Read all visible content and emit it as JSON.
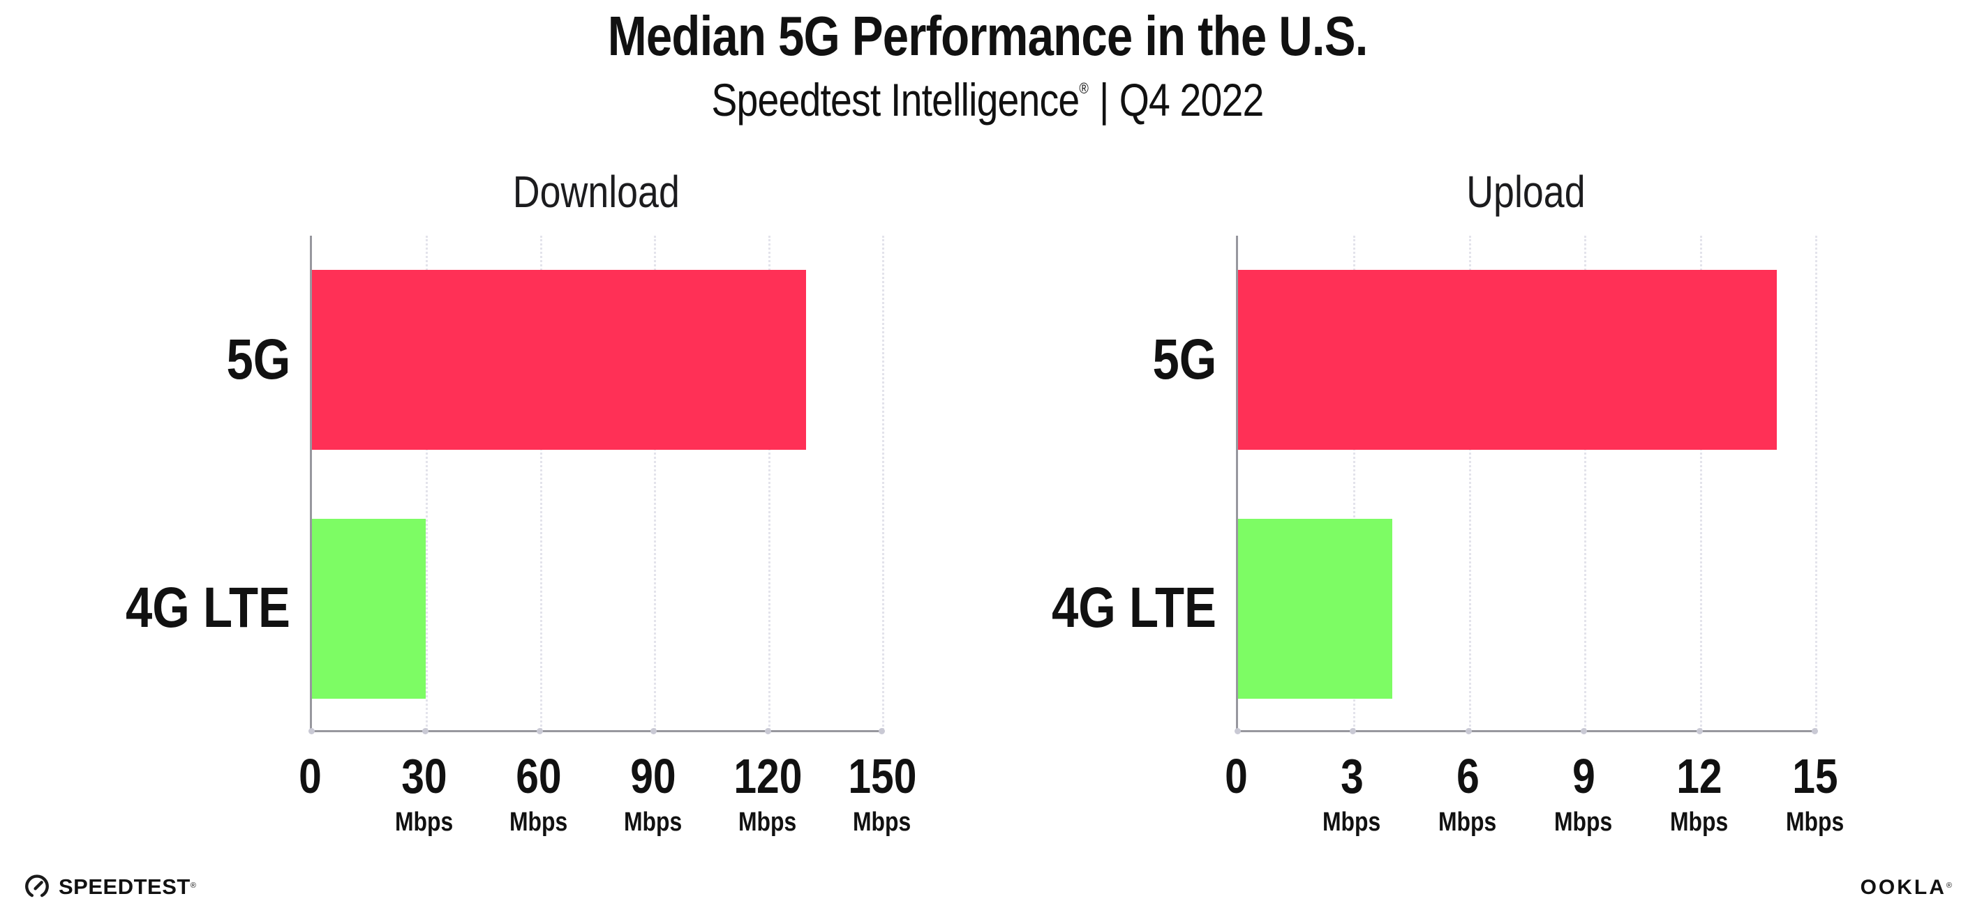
{
  "header": {
    "title": "Median 5G Performance in the U.S.",
    "subtitle": {
      "brand": "Speedtest Intelligence",
      "registered": "®",
      "divider": "|",
      "period": "Q4 2022"
    }
  },
  "chart_data": [
    {
      "type": "bar",
      "orientation": "horizontal",
      "title": "Download",
      "categories": [
        "5G",
        "4G LTE"
      ],
      "values": [
        130,
        30
      ],
      "unit": "Mbps",
      "xlabel": "",
      "xlim": [
        0,
        150
      ],
      "xticks": [
        0,
        30,
        60,
        90,
        120,
        150
      ],
      "bar_colors": [
        "#FF3056",
        "#7DFC64"
      ],
      "grid": "vertical-dotted",
      "legend": "none"
    },
    {
      "type": "bar",
      "orientation": "horizontal",
      "title": "Upload",
      "categories": [
        "5G",
        "4G LTE"
      ],
      "values": [
        14,
        4
      ],
      "unit": "Mbps",
      "xlabel": "",
      "xlim": [
        0,
        15
      ],
      "xticks": [
        0,
        3,
        6,
        9,
        12,
        15
      ],
      "bar_colors": [
        "#FF3056",
        "#7DFC64"
      ],
      "grid": "vertical-dotted",
      "legend": "none"
    }
  ],
  "colors": {
    "bar_5g": "#FF3056",
    "bar_4g_lte": "#7DFC64",
    "axis": "#97979E",
    "gridline": "#E3E3EB",
    "text": "#111111",
    "background": "#FFFFFF"
  },
  "footer": {
    "speedtest": {
      "label": "SPEEDTEST",
      "registered": "®"
    },
    "ookla": {
      "label": "OOKLA",
      "registered": "®"
    }
  }
}
